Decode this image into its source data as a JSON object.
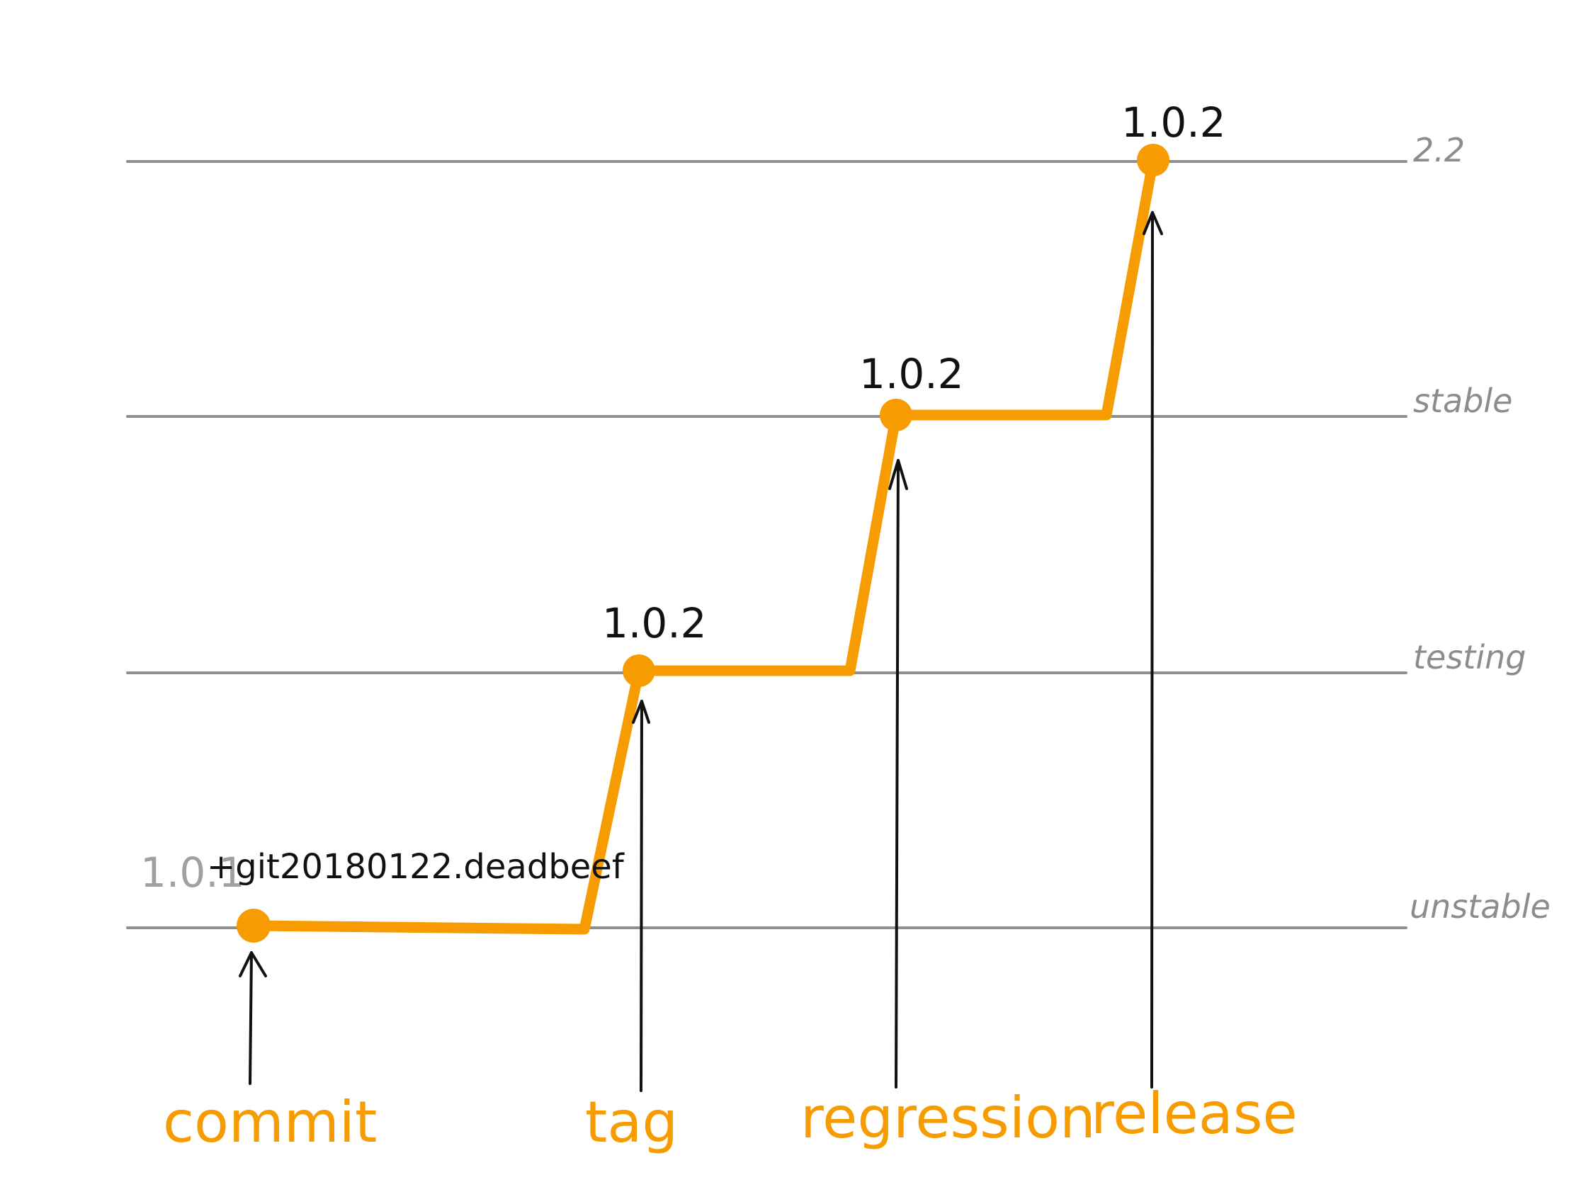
{
  "tiers": [
    {
      "key": "release_tier",
      "label": "2.2"
    },
    {
      "key": "stable",
      "label": "stable"
    },
    {
      "key": "testing",
      "label": "testing"
    },
    {
      "key": "unstable",
      "label": "unstable"
    }
  ],
  "versions": {
    "commit_base": "1.0.1",
    "commit_suffix": "+git20180122.deadbeef",
    "tag": "1.0.2",
    "regression": "1.0.2",
    "release": "1.0.2"
  },
  "events": {
    "commit": "commit",
    "tag": "tag",
    "regression": "regression",
    "release": "release"
  },
  "colors": {
    "accent": "#f79c00",
    "tier_line": "#8f8f8f",
    "text": "#111111",
    "muted_text": "#a0a0a0"
  }
}
